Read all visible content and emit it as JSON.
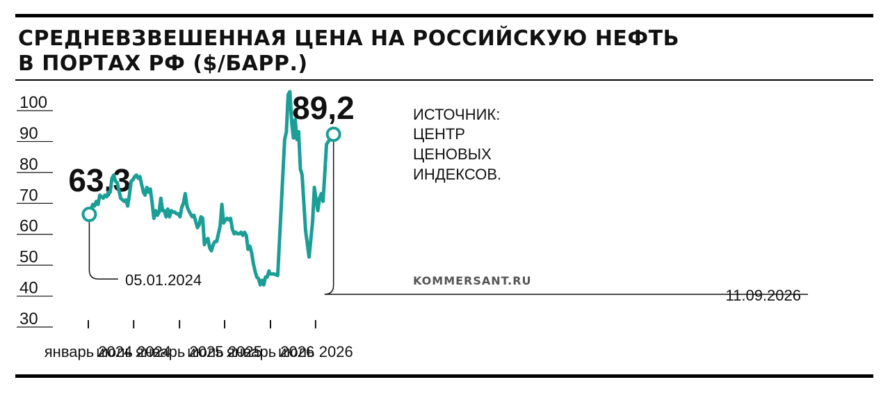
{
  "header": {
    "title_line1": "СРЕДНЕВЗВЕШЕННАЯ ЦЕНА НА РОССИЙСКУЮ НЕФТЬ",
    "title_line2": "В ПОРТАХ РФ ($/БАРР.)"
  },
  "source": [
    "ИСТОЧНИК:",
    "ЦЕНТР",
    "ЦЕНОВЫХ",
    "ИНДЕКСОВ."
  ],
  "brand": "KOMMERSANT.RU",
  "colors": {
    "line": "#1a9e96",
    "text": "#111111",
    "rule": "#000000"
  },
  "chart_data": {
    "type": "line",
    "title": "СРЕДНЕВЗВЕШЕННАЯ ЦЕНА НА РОССИЙСКУЮ НЕФТЬ В ПОРТАХ РФ ($/БАРР.)",
    "ylim": [
      30,
      100
    ],
    "yticks": [
      "100",
      "90",
      "80",
      "70",
      "60",
      "50",
      "40",
      "30"
    ],
    "xticks": [
      "январь 2024",
      "июль 2024",
      "январь 2025",
      "июль 2025",
      "январь 2026",
      "июль 2026"
    ],
    "grid": false,
    "series": [
      {
        "points": [
          [
            "2024-01-05",
            63.3
          ],
          [
            "2024-01-12",
            65.0
          ],
          [
            "2024-01-19",
            66.5
          ],
          [
            "2024-01-26",
            66.0
          ],
          [
            "2024-02-02",
            67.5
          ],
          [
            "2024-02-09",
            66.5
          ],
          [
            "2024-02-16",
            69.5
          ],
          [
            "2024-02-23",
            69.0
          ],
          [
            "2024-03-01",
            68.5
          ],
          [
            "2024-03-08",
            69.5
          ],
          [
            "2024-03-15",
            69.0
          ],
          [
            "2024-03-22",
            70.5
          ],
          [
            "2024-03-29",
            70.5
          ],
          [
            "2024-04-05",
            75.0
          ],
          [
            "2024-04-12",
            76.0
          ],
          [
            "2024-04-19",
            74.0
          ],
          [
            "2024-04-26",
            73.5
          ],
          [
            "2024-05-03",
            71.0
          ],
          [
            "2024-05-10",
            68.5
          ],
          [
            "2024-05-17",
            68.0
          ],
          [
            "2024-05-24",
            67.5
          ],
          [
            "2024-05-31",
            68.0
          ],
          [
            "2024-06-07",
            66.0
          ],
          [
            "2024-06-14",
            69.5
          ],
          [
            "2024-06-21",
            74.0
          ],
          [
            "2024-06-28",
            74.5
          ],
          [
            "2024-07-05",
            75.5
          ],
          [
            "2024-07-12",
            76.0
          ],
          [
            "2024-07-19",
            75.0
          ],
          [
            "2024-07-26",
            75.5
          ],
          [
            "2024-08-02",
            73.0
          ],
          [
            "2024-08-09",
            70.5
          ],
          [
            "2024-08-16",
            69.5
          ],
          [
            "2024-08-23",
            72.0
          ],
          [
            "2024-08-30",
            70.5
          ],
          [
            "2024-09-06",
            71.5
          ],
          [
            "2024-09-13",
            67.0
          ],
          [
            "2024-09-20",
            62.0
          ],
          [
            "2024-09-27",
            64.5
          ],
          [
            "2024-10-04",
            63.0
          ],
          [
            "2024-10-11",
            64.0
          ],
          [
            "2024-10-18",
            68.5
          ],
          [
            "2024-10-25",
            64.5
          ],
          [
            "2024-11-01",
            64.5
          ],
          [
            "2024-11-08",
            62.5
          ],
          [
            "2024-11-15",
            65.0
          ],
          [
            "2024-11-22",
            62.5
          ],
          [
            "2024-11-29",
            64.5
          ],
          [
            "2024-12-06",
            64.0
          ],
          [
            "2024-12-13",
            64.0
          ],
          [
            "2024-12-20",
            63.5
          ],
          [
            "2024-12-27",
            63.5
          ],
          [
            "2025-01-03",
            62.5
          ],
          [
            "2025-01-10",
            65.5
          ],
          [
            "2025-01-17",
            67.0
          ],
          [
            "2025-01-24",
            70.0
          ],
          [
            "2025-01-31",
            66.0
          ],
          [
            "2025-02-07",
            64.5
          ],
          [
            "2025-02-14",
            63.5
          ],
          [
            "2025-02-21",
            62.5
          ],
          [
            "2025-02-28",
            63.0
          ],
          [
            "2025-03-07",
            61.0
          ],
          [
            "2025-03-14",
            59.0
          ],
          [
            "2025-03-21",
            60.0
          ],
          [
            "2025-03-28",
            62.5
          ],
          [
            "2025-04-04",
            62.0
          ],
          [
            "2025-04-11",
            53.5
          ],
          [
            "2025-04-18",
            55.0
          ],
          [
            "2025-04-25",
            55.5
          ],
          [
            "2025-05-02",
            52.5
          ],
          [
            "2025-05-09",
            51.5
          ],
          [
            "2025-05-16",
            53.5
          ],
          [
            "2025-05-23",
            54.5
          ],
          [
            "2025-05-30",
            54.5
          ],
          [
            "2025-06-06",
            57.0
          ],
          [
            "2025-06-13",
            59.5
          ],
          [
            "2025-06-20",
            66.5
          ],
          [
            "2025-06-27",
            60.5
          ],
          [
            "2025-07-04",
            61.5
          ],
          [
            "2025-07-11",
            62.0
          ],
          [
            "2025-07-18",
            61.5
          ],
          [
            "2025-07-25",
            62.0
          ],
          [
            "2025-08-01",
            58.5
          ],
          [
            "2025-08-08",
            57.0
          ],
          [
            "2025-08-15",
            57.5
          ],
          [
            "2025-08-22",
            57.0
          ],
          [
            "2025-08-29",
            57.0
          ],
          [
            "2025-09-05",
            57.5
          ],
          [
            "2025-09-12",
            56.5
          ],
          [
            "2025-09-19",
            57.5
          ],
          [
            "2025-09-26",
            56.5
          ],
          [
            "2025-10-03",
            52.0
          ],
          [
            "2025-10-10",
            53.0
          ],
          [
            "2025-10-17",
            51.0
          ],
          [
            "2025-10-24",
            47.5
          ],
          [
            "2025-10-31",
            45.0
          ],
          [
            "2025-11-07",
            43.0
          ],
          [
            "2025-11-14",
            42.5
          ],
          [
            "2025-11-21",
            40.5
          ],
          [
            "2025-11-28",
            42.0
          ],
          [
            "2025-12-05",
            40.5
          ],
          [
            "2025-12-12",
            43.0
          ],
          [
            "2025-12-19",
            43.0
          ],
          [
            "2025-12-26",
            45.0
          ],
          [
            "2025-12-30",
            44.0
          ],
          [
            "2026-01-09",
            44.0
          ],
          [
            "2026-01-16",
            44.0
          ],
          [
            "2026-01-30",
            43.5
          ],
          [
            "2026-02-27",
            87.5
          ],
          [
            "2026-03-06",
            90.0
          ],
          [
            "2026-03-13",
            102.0
          ],
          [
            "2026-03-20",
            103.0
          ],
          [
            "2026-03-27",
            93.0
          ],
          [
            "2026-04-03",
            88.0
          ],
          [
            "2026-04-10",
            94.0
          ],
          [
            "2026-04-17",
            87.5
          ],
          [
            "2026-04-24",
            90.0
          ],
          [
            "2026-05-01",
            78.0
          ],
          [
            "2026-05-08",
            76.0
          ],
          [
            "2026-05-22",
            58.0
          ],
          [
            "2026-06-05",
            49.5
          ],
          [
            "2026-06-19",
            61.0
          ],
          [
            "2026-06-26",
            72.0
          ],
          [
            "2026-07-03",
            68.0
          ],
          [
            "2026-07-10",
            64.5
          ],
          [
            "2026-07-17",
            68.5
          ],
          [
            "2026-07-24",
            70.0
          ],
          [
            "2026-07-31",
            67.5
          ],
          [
            "2026-08-07",
            76.5
          ],
          [
            "2026-08-14",
            86.0
          ],
          [
            "2026-09-11",
            89.2
          ]
        ]
      }
    ],
    "annotations": {
      "start": {
        "value": "63,3",
        "date": "05.01.2024"
      },
      "end": {
        "value": "89,2",
        "date": "11.09.2026"
      }
    }
  }
}
